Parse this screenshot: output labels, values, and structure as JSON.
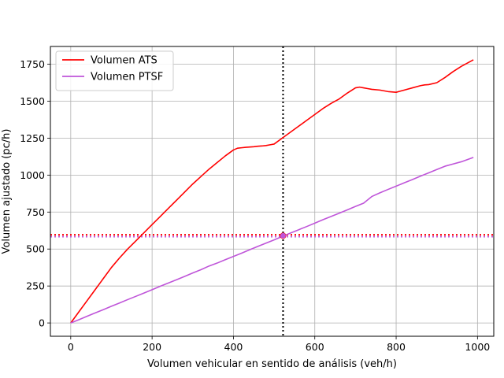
{
  "chart_data": {
    "type": "line",
    "title": "",
    "xlabel": "Volumen vehicular en sentido de análisis (veh/h)",
    "ylabel": "Volumen ajustado (pc/h)",
    "xlim": [
      -50,
      1040
    ],
    "ylim": [
      -90,
      1870
    ],
    "xticks": [
      0,
      200,
      400,
      600,
      800,
      1000
    ],
    "yticks": [
      0,
      250,
      500,
      750,
      1000,
      1250,
      1500,
      1750
    ],
    "grid": true,
    "legend_position": "top-left",
    "series": [
      {
        "name": "Volumen ATS",
        "color": "#ff0000",
        "x": [
          0,
          20,
          40,
          60,
          80,
          100,
          120,
          140,
          160,
          180,
          200,
          220,
          240,
          260,
          280,
          300,
          320,
          340,
          360,
          380,
          400,
          410,
          420,
          430,
          440,
          450,
          460,
          470,
          480,
          490,
          500,
          520,
          540,
          560,
          580,
          600,
          620,
          640,
          660,
          680,
          700,
          710,
          720,
          730,
          740,
          760,
          780,
          800,
          820,
          840,
          860,
          870,
          880,
          900,
          920,
          940,
          960,
          990
        ],
        "y": [
          0,
          75,
          150,
          225,
          300,
          375,
          440,
          500,
          555,
          610,
          665,
          720,
          775,
          830,
          885,
          940,
          990,
          1040,
          1085,
          1130,
          1170,
          1182,
          1185,
          1188,
          1190,
          1192,
          1195,
          1197,
          1200,
          1205,
          1210,
          1250,
          1290,
          1330,
          1370,
          1410,
          1450,
          1485,
          1515,
          1555,
          1590,
          1595,
          1590,
          1585,
          1580,
          1575,
          1565,
          1560,
          1575,
          1590,
          1605,
          1610,
          1612,
          1625,
          1660,
          1700,
          1735,
          1780
        ]
      },
      {
        "name": "Volumen PTSF",
        "color": "#bf55d9",
        "x": [
          0,
          20,
          40,
          60,
          80,
          100,
          120,
          140,
          160,
          180,
          200,
          220,
          240,
          260,
          280,
          300,
          320,
          340,
          360,
          380,
          400,
          420,
          440,
          460,
          480,
          500,
          520,
          540,
          560,
          580,
          600,
          620,
          640,
          660,
          680,
          700,
          720,
          740,
          760,
          780,
          800,
          820,
          840,
          860,
          880,
          900,
          920,
          940,
          960,
          990
        ],
        "y": [
          0,
          22,
          45,
          68,
          90,
          113,
          135,
          158,
          180,
          202,
          225,
          248,
          270,
          292,
          315,
          338,
          360,
          385,
          405,
          428,
          450,
          472,
          495,
          518,
          540,
          562,
          585,
          608,
          630,
          652,
          675,
          698,
          720,
          742,
          765,
          788,
          810,
          855,
          880,
          903,
          925,
          948,
          970,
          993,
          1015,
          1038,
          1060,
          1075,
          1090,
          1120
        ]
      }
    ],
    "reference_lines": {
      "vertical_x": 522,
      "horizontal_y": 590,
      "vertical_color": "#000000",
      "horizontal_colors": [
        "#ff0000",
        "#bf55d9"
      ],
      "marker_x": 522,
      "marker_y": 590
    }
  }
}
